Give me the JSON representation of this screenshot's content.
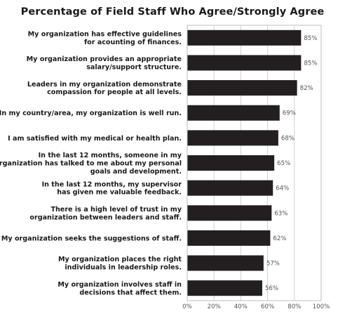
{
  "chart_data": {
    "type": "bar",
    "orientation": "horizontal",
    "title": "Percentage of Field Staff Who Agree/Strongly Agree",
    "categories": [
      [
        "My organization has effective guidelines",
        "for acounting of finances."
      ],
      [
        "My organization provides an appropriate",
        "salary/support structure."
      ],
      [
        "Leaders in my organization demonstrate",
        "compassion for people at all levels."
      ],
      [
        "In my country/area, my organization is well run."
      ],
      [
        "I am satisfied with my medical or health plan."
      ],
      [
        "In the last 12 months, someone in my",
        "organization has talked to me about my personal",
        "goals and development."
      ],
      [
        "In the last 12 months, my supervisor",
        "has given me valuable feedback."
      ],
      [
        "There is a high level of trust in my",
        "organization between leaders and staff."
      ],
      [
        "My organization seeks the suggestions of staff."
      ],
      [
        "My organization places the right",
        "individuals in leadership roles."
      ],
      [
        "My organization involves staff in",
        "decisions that affect them."
      ]
    ],
    "values": [
      85,
      85,
      82,
      69,
      68,
      65,
      64,
      63,
      62,
      57,
      56
    ],
    "value_labels": [
      "85%",
      "85%",
      "82%",
      "69%",
      "68%",
      "65%",
      "64%",
      "63%",
      "62%",
      "57%",
      "56%"
    ],
    "xlim": [
      0,
      100
    ],
    "xticks": [
      "0%",
      "20%",
      "40%",
      "60%",
      "80%",
      "100%"
    ],
    "xtick_values": [
      0,
      20,
      40,
      60,
      80,
      100
    ],
    "bar_color": "#231f20",
    "grid": true,
    "legend": "none"
  }
}
